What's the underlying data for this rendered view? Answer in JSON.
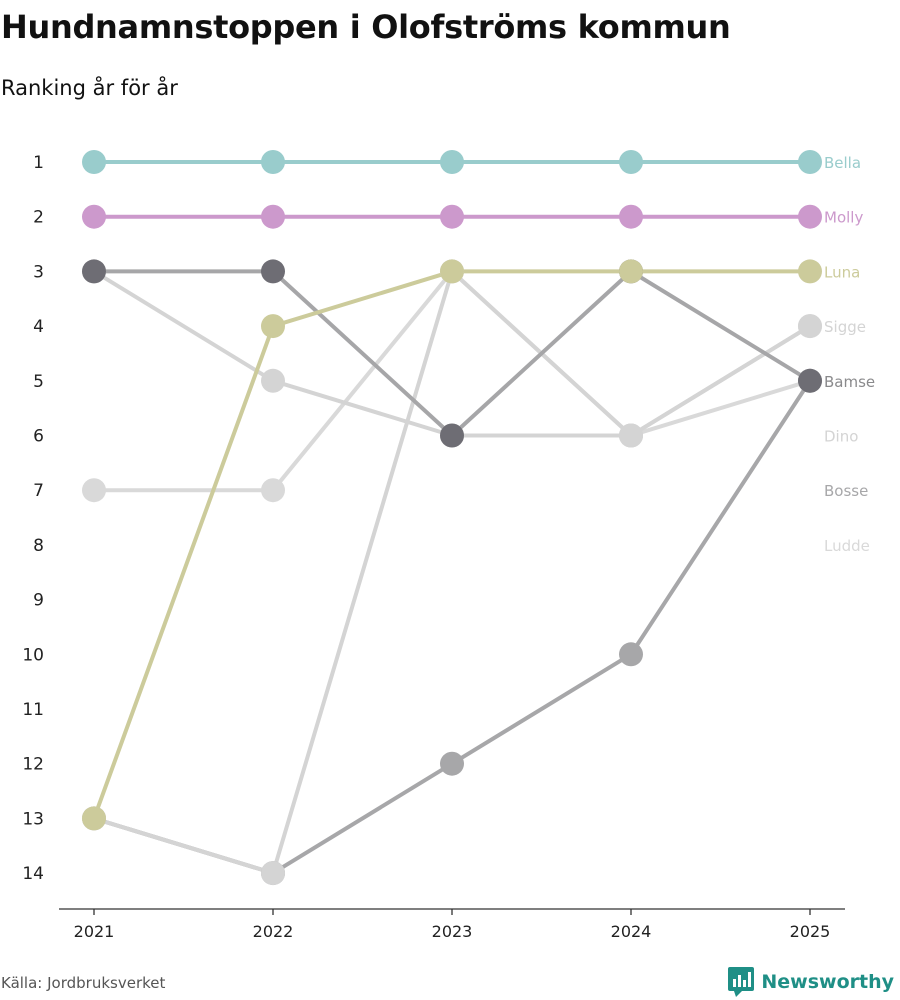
{
  "title": "Hundnamnstoppen i Olofströms kommun",
  "subtitle": "Ranking år för år",
  "source": "Källa: Jordbruksverket",
  "brand": "Newsworthy",
  "chart_data": {
    "type": "bump",
    "title": "Hundnamnstoppen i Olofströms kommun",
    "subtitle": "Ranking år för år",
    "x": [
      "2021",
      "2022",
      "2023",
      "2024",
      "2025"
    ],
    "y_ticks": [
      1,
      2,
      3,
      4,
      5,
      6,
      7,
      8,
      9,
      10,
      11,
      12,
      13,
      14
    ],
    "ylim": [
      1,
      14
    ],
    "y_reversed": true,
    "series": [
      {
        "name": "Ludde",
        "color": "#d9d9d9",
        "ranks": [
          7,
          7,
          3,
          6,
          5
        ],
        "label_rank": 8
      },
      {
        "name": "Dino",
        "color": "#d4d4d4",
        "ranks": [
          3,
          5,
          6,
          6,
          4
        ],
        "label_rank": 6
      },
      {
        "name": "Bosse",
        "color": "#a7a7a9",
        "ranks": [
          13,
          14,
          12,
          10,
          5
        ],
        "label_rank": 7
      },
      {
        "name": "Sigge",
        "color": "#d4d4d4",
        "ranks": [
          13,
          14,
          3,
          6,
          4
        ],
        "label_rank": 4
      },
      {
        "name": "Bamse",
        "color": "#a6a6a8",
        "ranks": [
          3,
          3,
          6,
          3,
          5
        ],
        "label_rank": 5,
        "marker_color": "#6e6d74"
      },
      {
        "name": "Luna",
        "color": "#cccb9b",
        "ranks": [
          13,
          4,
          3,
          3,
          3
        ],
        "label_rank": 3
      },
      {
        "name": "Molly",
        "color": "#cc99cc",
        "ranks": [
          2,
          2,
          2,
          2,
          2
        ],
        "label_rank": 2
      },
      {
        "name": "Bella",
        "color": "#99cccc",
        "ranks": [
          1,
          1,
          1,
          1,
          1
        ],
        "label_rank": 1
      }
    ]
  }
}
